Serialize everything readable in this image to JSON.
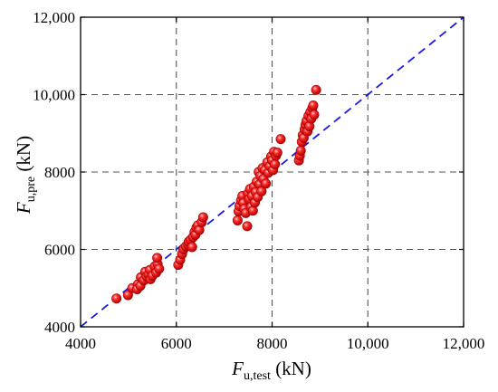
{
  "chart_data": {
    "type": "scatter",
    "title": "",
    "xlabel": {
      "symbol": "F",
      "subscript": "u,test",
      "unit": " (kN)"
    },
    "ylabel": {
      "symbol": "F",
      "subscript": "u,pre",
      "unit": " (kN)"
    },
    "xlim": [
      4000,
      12000
    ],
    "ylim": [
      4000,
      12000
    ],
    "x_ticks": [
      4000,
      6000,
      8000,
      10000,
      12000
    ],
    "y_ticks": [
      4000,
      6000,
      8000,
      10000,
      12000
    ],
    "x_tick_labels": [
      "4000",
      "6000",
      "8000",
      "10,000",
      "12,000"
    ],
    "y_tick_labels": [
      "4000",
      "6000",
      "8000",
      "10,000",
      "12,000"
    ],
    "grid": true,
    "reference_line": {
      "style": "dashed",
      "color": "#1a1ae6",
      "from": [
        4000,
        4000
      ],
      "to": [
        12000,
        12000
      ]
    },
    "marker_color": "#e8141c",
    "series": [
      {
        "points": [
          [
            4750,
            4730
          ],
          [
            4990,
            4820
          ],
          [
            5080,
            5000
          ],
          [
            5200,
            5100
          ],
          [
            5180,
            4970
          ],
          [
            5250,
            5060
          ],
          [
            5260,
            5280
          ],
          [
            5320,
            5200
          ],
          [
            5350,
            5420
          ],
          [
            5380,
            5300
          ],
          [
            5420,
            5360
          ],
          [
            5450,
            5470
          ],
          [
            5460,
            5230
          ],
          [
            5500,
            5320
          ],
          [
            5550,
            5560
          ],
          [
            5580,
            5400
          ],
          [
            5610,
            5620
          ],
          [
            5600,
            5780
          ],
          [
            5640,
            5500
          ],
          [
            6040,
            5600
          ],
          [
            6080,
            5730
          ],
          [
            6120,
            5880
          ],
          [
            6150,
            6000
          ],
          [
            6200,
            6080
          ],
          [
            6250,
            6120
          ],
          [
            6260,
            6200
          ],
          [
            6300,
            6250
          ],
          [
            6330,
            6060
          ],
          [
            6350,
            6320
          ],
          [
            6380,
            6450
          ],
          [
            6400,
            6380
          ],
          [
            6420,
            6560
          ],
          [
            6450,
            6620
          ],
          [
            6480,
            6500
          ],
          [
            6530,
            6700
          ],
          [
            6560,
            6830
          ],
          [
            7280,
            6750
          ],
          [
            7300,
            6980
          ],
          [
            7320,
            7120
          ],
          [
            7350,
            7260
          ],
          [
            7380,
            7380
          ],
          [
            7400,
            7200
          ],
          [
            7420,
            7050
          ],
          [
            7450,
            6940
          ],
          [
            7480,
            6600
          ],
          [
            7500,
            7450
          ],
          [
            7520,
            7300
          ],
          [
            7540,
            7560
          ],
          [
            7560,
            7100
          ],
          [
            7580,
            7380
          ],
          [
            7600,
            7000
          ],
          [
            7620,
            7620
          ],
          [
            7640,
            7210
          ],
          [
            7660,
            7480
          ],
          [
            7680,
            7750
          ],
          [
            7700,
            7350
          ],
          [
            7720,
            8000
          ],
          [
            7740,
            7680
          ],
          [
            7760,
            7900
          ],
          [
            7780,
            7500
          ],
          [
            7800,
            8100
          ],
          [
            7820,
            7820
          ],
          [
            7850,
            8050
          ],
          [
            7870,
            7700
          ],
          [
            7900,
            8250
          ],
          [
            7920,
            7980
          ],
          [
            7950,
            8150
          ],
          [
            7980,
            8400
          ],
          [
            8000,
            8300
          ],
          [
            8020,
            8050
          ],
          [
            8040,
            8520
          ],
          [
            8060,
            8200
          ],
          [
            8080,
            8420
          ],
          [
            8110,
            8500
          ],
          [
            8180,
            8850
          ],
          [
            8560,
            8300
          ],
          [
            8580,
            8420
          ],
          [
            8600,
            8550
          ],
          [
            8620,
            8780
          ],
          [
            8640,
            8950
          ],
          [
            8660,
            8880
          ],
          [
            8680,
            9100
          ],
          [
            8700,
            9220
          ],
          [
            8720,
            9320
          ],
          [
            8740,
            9050
          ],
          [
            8760,
            9450
          ],
          [
            8780,
            9180
          ],
          [
            8800,
            9550
          ],
          [
            8820,
            9380
          ],
          [
            8840,
            9650
          ],
          [
            8860,
            9720
          ],
          [
            8880,
            9480
          ],
          [
            8920,
            10120
          ]
        ]
      }
    ]
  }
}
